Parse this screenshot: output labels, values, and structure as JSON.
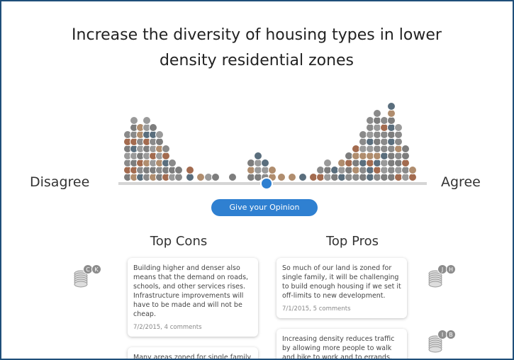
{
  "header": {
    "title": "Increase the diversity of housing types in lower density residential zones"
  },
  "scale": {
    "left_label": "Disagree",
    "right_label": "Agree",
    "button": "Give your Opinion"
  },
  "cons": {
    "heading": "Top Cons",
    "avatars": [
      "C",
      "K"
    ],
    "comments": [
      {
        "text": "Building higher and denser also means that the demand on roads, schools, and other services rises. Infrastructure improvements will have to be made and will not be cheap.",
        "meta": "7/2/2015, 4 comments"
      },
      {
        "text": "Many areas zoned for single family",
        "meta": ""
      }
    ]
  },
  "pros": {
    "heading": "Top Pros",
    "avatars": [
      "J",
      "H"
    ],
    "avatars2": [
      "I",
      "B"
    ],
    "comments": [
      {
        "text": "So much of our land is zoned for single family, it will be challenging to build enough housing if we set it off-limits to new development.",
        "meta": "7/1/2015, 5 comments"
      },
      {
        "text": "Increasing density reduces traffic by allowing more people to walk and bike to work and to errands.",
        "meta": ""
      }
    ]
  }
}
